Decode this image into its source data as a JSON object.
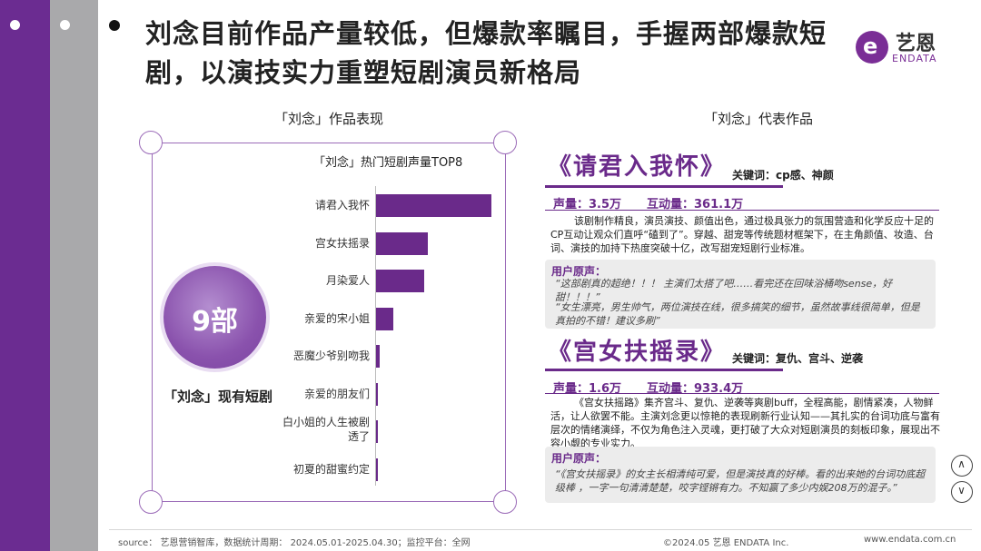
{
  "header": {
    "title_line1": "刘念目前作品产量较低，但爆款率瞩目，手握两部爆款短",
    "title_line2": "剧，以演技实力重塑短剧演员新格局"
  },
  "logo": {
    "cn": "艺恩",
    "en": "ENDATA",
    "mark": "e"
  },
  "left": {
    "heading": "「刘念」作品表现",
    "count_value": "9部",
    "count_caption": "「刘念」现有短剧"
  },
  "right": {
    "heading": "「刘念」代表作品"
  },
  "chart_data": {
    "type": "bar",
    "orientation": "horizontal",
    "title": "「刘念」热门短剧声量TOP8",
    "categories": [
      "请君入我怀",
      "宫女扶摇录",
      "月染爱人",
      "亲爱的宋小姐",
      "恶魔少爷别吻我",
      "亲爱的朋友们",
      "白小姐的人生被剧透了",
      "初夏的甜蜜约定"
    ],
    "values": [
      100,
      45,
      42,
      15,
      3,
      1.5,
      1,
      0.8
    ],
    "xlim": [
      0,
      100
    ],
    "color": "#6a2a8a",
    "grid": false
  },
  "works": [
    {
      "title": "《请君入我怀》",
      "keywords": "关键词：cp感、神颜",
      "voice": "声量：3.5万",
      "interact": "互动量：361.1万",
      "desc": "该剧制作精良，演员演技、颜值出色，通过极具张力的氛围营造和化学反应十足的CP互动让观众们直呼“磕到了”。穿越、甜宠等传统题材框架下，在主角颜值、妆造、台词、演技的加持下热度突破十亿，改写甜宠短剧行业标准。",
      "review_h": "用户原声：",
      "review1": "“这部剧真的超绝！！！    主演们太搭了吧……看完还在回味浴桶吻sense，好甜！！！”",
      "review2": "“女生漂亮，男生帅气，两位演技在线，很多搞笑的细节，虽然故事线很简单，但是真拍的不错！建议多刷”"
    },
    {
      "title": "《宫女扶摇录》",
      "keywords": "关键词：复仇、宫斗、逆袭",
      "voice": "声量：1.6万",
      "interact": "互动量：933.4万",
      "desc": "《宫女扶摇路》集齐宫斗、复仇、逆袭等爽剧buff，全程高能，剧情紧凑，人物鲜活，让人欲罢不能。主演刘念更以惊艳的表现刷新行业认知——其扎实的台词功底与富有层次的情绪演绎，不仅为角色注入灵魂，更打破了大众对短剧演员的刻板印象，展现出不容小觑的专业实力。",
      "review_h": "用户原声：",
      "review1": "“《宫女扶摇录》的女主长相清纯可爱，但是演技真的好棒。看的出来她的台词功底超级棒      ，一字一句清清楚楚，咬字铿锵有力。不知赢了多少内娱208万的混子。”"
    }
  ],
  "nav": {
    "up_icon": "chevron-up-icon",
    "down_icon": "chevron-down-icon"
  },
  "footer": {
    "source": "source： 艺恩营销智库，数据统计周期： 2024.05.01-2025.04.30；监控平台：全网",
    "copyright": "©2024.05  艺恩  ENDATA Inc.",
    "url": "www.endata.com.cn"
  }
}
